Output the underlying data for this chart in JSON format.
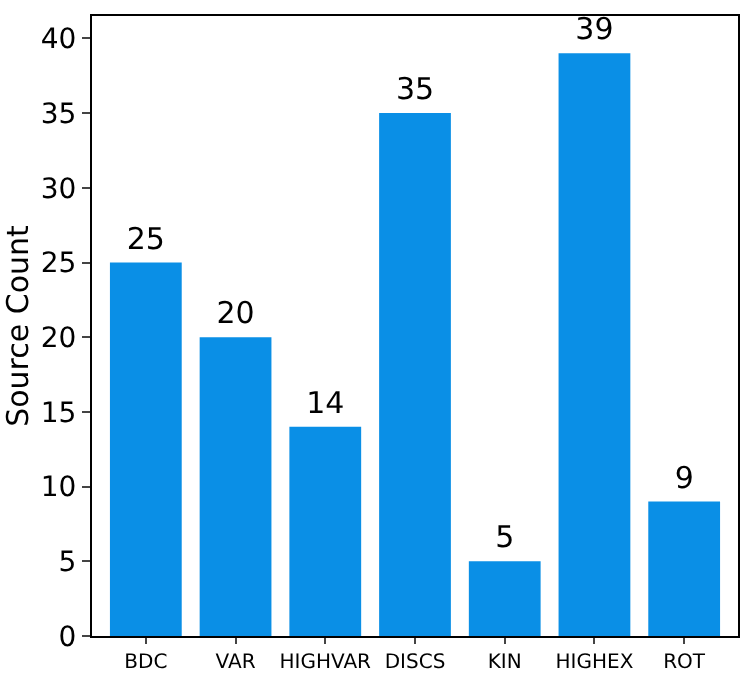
{
  "chart_data": {
    "type": "bar",
    "ylabel": "Source Count",
    "categories": [
      "BDC",
      "VAR",
      "HIGHVAR",
      "DISCS",
      "KIN",
      "HIGHEX",
      "ROT"
    ],
    "values": [
      25,
      20,
      14,
      35,
      5,
      39,
      9
    ],
    "color": "#0a8fe6",
    "ylim": [
      0,
      41.5
    ],
    "yticks": [
      0,
      5,
      10,
      15,
      20,
      25,
      30,
      35,
      40
    ],
    "data_labels": true
  }
}
